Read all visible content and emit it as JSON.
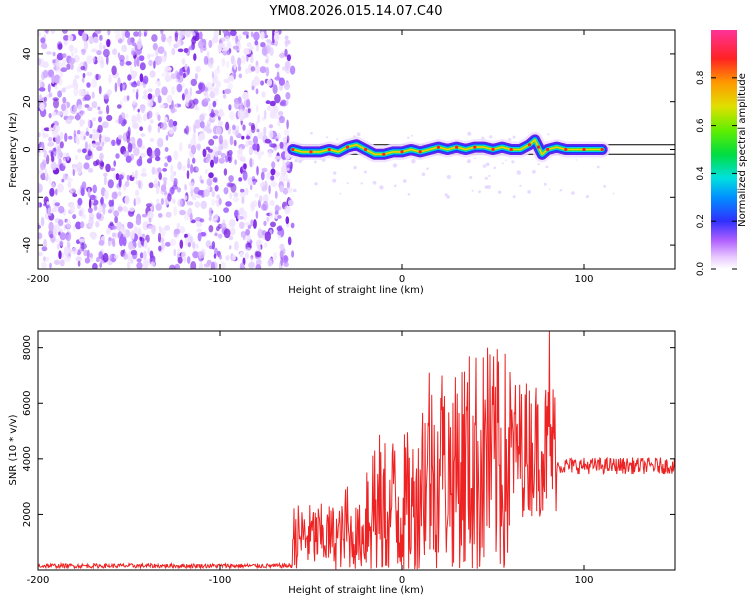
{
  "title": "YM08.2026.015.14.07.C40",
  "chart_data": [
    {
      "type": "heatmap",
      "xlabel": "Height of straight line (km)",
      "ylabel": "Frequency (Hz)",
      "xlim": [
        -200,
        150
      ],
      "ylim": [
        -50,
        50
      ],
      "xticks": [
        -200,
        -100,
        0,
        100
      ],
      "yticks": [
        -40,
        -20,
        0,
        20,
        40
      ],
      "noise_region_x": [
        -200,
        -60
      ],
      "signal_track": {
        "x": [
          -60,
          -55,
          -50,
          -45,
          -40,
          -35,
          -30,
          -25,
          -20,
          -15,
          -10,
          -5,
          0,
          5,
          10,
          15,
          20,
          25,
          30,
          35,
          40,
          45,
          50,
          55,
          60,
          65,
          70,
          73,
          75,
          77,
          80,
          85,
          90,
          95,
          100,
          105,
          110
        ],
        "y": [
          0,
          -1,
          -1,
          -1,
          0,
          -1,
          1,
          2,
          0,
          -2,
          -2,
          -1,
          -1,
          0,
          -1,
          0,
          1,
          0,
          1,
          0,
          1,
          1,
          0,
          1,
          0,
          0,
          2,
          4,
          1,
          -2,
          0,
          1,
          0,
          0,
          0,
          0,
          0
        ]
      },
      "reference_band_hz": [
        -2,
        2
      ],
      "colorbar": {
        "label": "Normalized spectral amplitude",
        "ticks": [
          "0.0",
          "0.2",
          "0.4",
          "0.6",
          "0.8"
        ],
        "range": [
          0,
          1
        ]
      }
    },
    {
      "type": "line",
      "xlabel": "Height of straight line (km)",
      "ylabel": "SNR (10 * v/v)",
      "xlim": [
        -200,
        150
      ],
      "ylim": [
        0,
        8600
      ],
      "xticks": [
        -200,
        -100,
        0,
        100
      ],
      "yticks": [
        2000,
        4000,
        6000,
        8000
      ],
      "series": [
        {
          "name": "SNR",
          "color": "#ee2222",
          "segments": [
            {
              "x0": -200,
              "x1": -60,
              "base": 150,
              "amp": 80
            },
            {
              "x0": -60,
              "x1": -20,
              "base": 1200,
              "amp": 1200
            },
            {
              "x0": -20,
              "x1": 10,
              "base": 2200,
              "amp": 2800
            },
            {
              "x0": 10,
              "x1": 30,
              "base": 3500,
              "amp": 3500
            },
            {
              "x0": 30,
              "x1": 60,
              "base": 3800,
              "amp": 4200
            },
            {
              "x0": 60,
              "x1": 85,
              "base": 4400,
              "amp": 2500
            },
            {
              "x0": 85,
              "x1": 150,
              "base": 3750,
              "amp": 300
            }
          ],
          "peaks": [
            {
              "x": 81,
              "y": 8600
            },
            {
              "x": 47,
              "y": 8000
            },
            {
              "x": 15,
              "y": 7100
            },
            {
              "x": 22,
              "y": 7000
            },
            {
              "x": -30,
              "y": 3000
            },
            {
              "x": -15,
              "y": 4300
            },
            {
              "x": 53,
              "y": 7500
            },
            {
              "x": -31,
              "y": 2900
            },
            {
              "x": -4,
              "y": 4300
            }
          ]
        }
      ]
    }
  ]
}
